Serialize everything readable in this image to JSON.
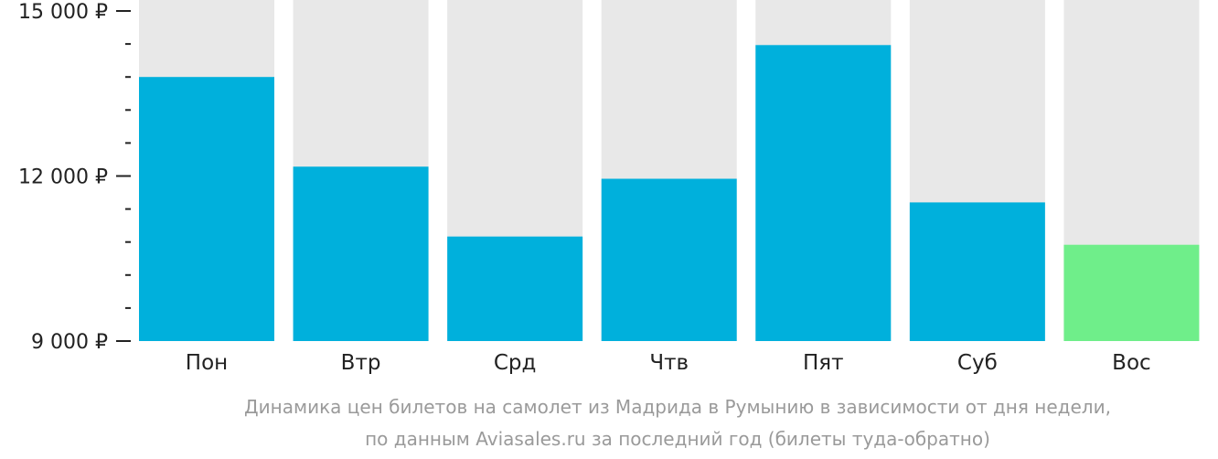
{
  "chart_data": {
    "type": "bar",
    "categories": [
      "Пон",
      "Втр",
      "Срд",
      "Чтв",
      "Пят",
      "Суб",
      "Вос"
    ],
    "values": [
      13800,
      12170,
      10900,
      11950,
      14380,
      11520,
      10750
    ],
    "ylim": [
      9000,
      15000
    ],
    "y_ticks": [
      {
        "value": 15000,
        "label": "15 000 ₽"
      },
      {
        "value": 12000,
        "label": "12 000 ₽"
      },
      {
        "value": 9000,
        "label": "9 000 ₽"
      }
    ],
    "minor_tick_step": 600,
    "highlight_index": 6,
    "colors": {
      "bar": "#00b0dc",
      "highlight": "#6fee8a",
      "background_column": "#e8e8e8",
      "axis_text": "#222222",
      "caption_text": "#9a9a9a"
    },
    "caption": [
      "Динамика цен билетов на самолет из Мадрида в Румынию в зависимости от дня недели,",
      "по данным Aviasales.ru за последний год (билеты туда-обратно)"
    ]
  }
}
